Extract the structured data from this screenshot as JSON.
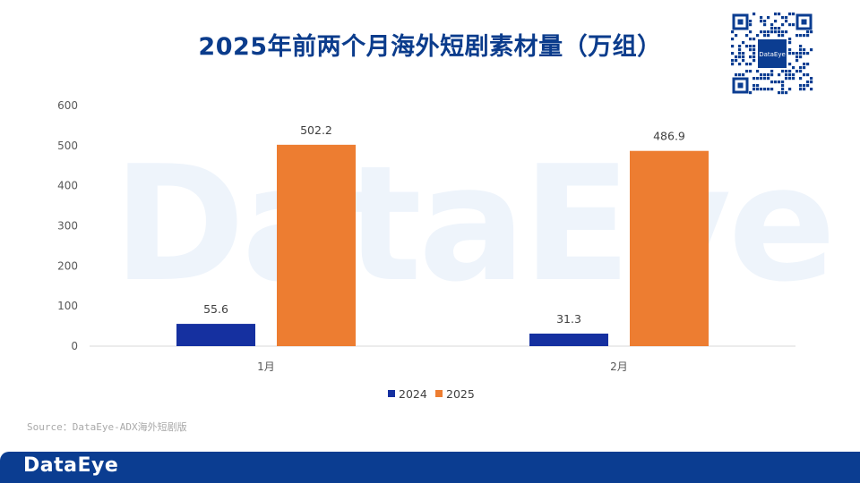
{
  "title": "2025年前两个月海外短剧素材量（万组）",
  "watermark": "DataEye",
  "qr_label": "DataEye",
  "source": "Source：DataEye-ADX海外短剧版",
  "footer_logo": "DataEye",
  "colors": {
    "series_2024": "#1530a0",
    "series_2025": "#ed7d31",
    "title": "#0b3c8c",
    "footer": "#0b3d91"
  },
  "chart_data": {
    "type": "bar",
    "title": "2025年前两个月海外短剧素材量（万组）",
    "categories": [
      "1月",
      "2月"
    ],
    "series": [
      {
        "name": "2024",
        "values": [
          55.6,
          31.3
        ]
      },
      {
        "name": "2025",
        "values": [
          502.2,
          486.9
        ]
      }
    ],
    "ylim": [
      0,
      600
    ],
    "yticks": [
      0,
      100,
      200,
      300,
      400,
      500,
      600
    ],
    "grid": false,
    "legend": "bottom",
    "data_labels": true
  }
}
